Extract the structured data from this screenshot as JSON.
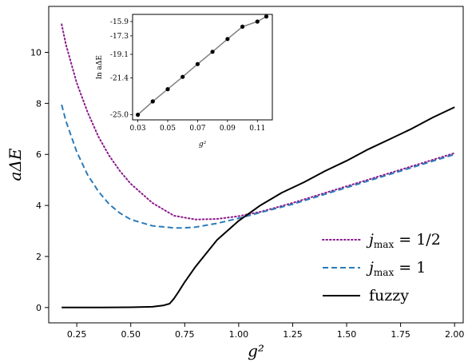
{
  "chart_data": [
    {
      "type": "line",
      "title": "",
      "xlabel": "g²",
      "ylabel": "aΔE",
      "xlim": [
        0.12,
        2.04
      ],
      "ylim": [
        -0.6,
        11.8
      ],
      "xticks": [
        0.25,
        0.5,
        0.75,
        1.0,
        1.25,
        1.5,
        1.75,
        2.0
      ],
      "xtick_labels": [
        "0.25",
        "0.50",
        "0.75",
        "1.00",
        "1.25",
        "1.50",
        "1.75",
        "2.00"
      ],
      "yticks": [
        0,
        2,
        4,
        6,
        8,
        10
      ],
      "ytick_labels": [
        "0",
        "2",
        "4",
        "6",
        "8",
        "10"
      ],
      "grid": false,
      "legend_position": "lower-right",
      "series": [
        {
          "name": "jmax = 1/2",
          "legend_label": "j",
          "legend_sub": "max",
          "legend_value": " = 1/2",
          "color": "#8b1a8b",
          "style": "dotted",
          "x": [
            0.18,
            0.2,
            0.25,
            0.3,
            0.35,
            0.4,
            0.45,
            0.5,
            0.6,
            0.7,
            0.8,
            0.9,
            1.0,
            1.1,
            1.25,
            1.5,
            1.75,
            2.0
          ],
          "y": [
            11.1,
            10.3,
            8.8,
            7.65,
            6.7,
            5.95,
            5.35,
            4.85,
            4.1,
            3.6,
            3.45,
            3.47,
            3.58,
            3.75,
            4.1,
            4.75,
            5.4,
            6.05
          ]
        },
        {
          "name": "jmax = 1",
          "legend_label": "j",
          "legend_sub": "max",
          "legend_value": " = 1",
          "color": "#2b7bba",
          "style": "dashed",
          "x": [
            0.18,
            0.2,
            0.25,
            0.3,
            0.35,
            0.4,
            0.45,
            0.5,
            0.6,
            0.7,
            0.75,
            0.8,
            0.9,
            1.0,
            1.1,
            1.25,
            1.5,
            1.75,
            2.0
          ],
          "y": [
            7.95,
            7.3,
            6.1,
            5.2,
            4.55,
            4.05,
            3.7,
            3.45,
            3.2,
            3.12,
            3.12,
            3.15,
            3.3,
            3.5,
            3.72,
            4.05,
            4.7,
            5.35,
            6.0
          ]
        },
        {
          "name": "fuzzy",
          "legend_label": "fuzzy",
          "legend_sub": "",
          "legend_value": "",
          "color": "#000000",
          "style": "solid",
          "x": [
            0.18,
            0.3,
            0.5,
            0.6,
            0.65,
            0.68,
            0.7,
            0.72,
            0.75,
            0.8,
            0.9,
            1.0,
            1.1,
            1.2,
            1.3,
            1.4,
            1.5,
            1.6,
            1.7,
            1.8,
            1.9,
            2.0
          ],
          "y": [
            0.0,
            0.0,
            0.01,
            0.03,
            0.08,
            0.15,
            0.35,
            0.6,
            1.0,
            1.6,
            2.65,
            3.4,
            4.0,
            4.5,
            4.9,
            5.35,
            5.75,
            6.2,
            6.6,
            7.0,
            7.45,
            7.85
          ]
        }
      ]
    },
    {
      "type": "line",
      "title": "",
      "xlabel": "g²",
      "ylabel": "ln aΔE",
      "xlim": [
        0.0265,
        0.12
      ],
      "ylim": [
        -25.5,
        -15.2
      ],
      "xticks": [
        0.03,
        0.05,
        0.07,
        0.09,
        0.11
      ],
      "xtick_labels": [
        "0.03",
        "0.05",
        "0.07",
        "0.09",
        "0.11"
      ],
      "yticks": [
        -25.0,
        -21.4,
        -19.1,
        -17.3,
        -15.9
      ],
      "ytick_labels": [
        "-25.0",
        "-21.4",
        "-19.1",
        "-17.3",
        "-15.9"
      ],
      "grid": false,
      "series": [
        {
          "color": "#808080",
          "marker_color": "#000000",
          "x": [
            0.03,
            0.04,
            0.05,
            0.06,
            0.07,
            0.08,
            0.09,
            0.1,
            0.11,
            0.116
          ],
          "y": [
            -25.0,
            -23.7,
            -22.5,
            -21.3,
            -20.05,
            -18.85,
            -17.6,
            -16.4,
            -15.9,
            -15.4
          ]
        }
      ]
    }
  ]
}
